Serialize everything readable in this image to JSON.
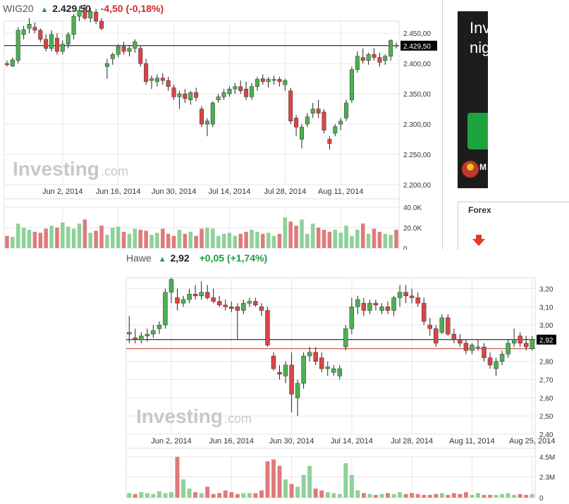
{
  "colors": {
    "up": "#4cb050",
    "down": "#d94545",
    "vol_up": "#8dd19a",
    "vol_down": "#e07a7a",
    "grid": "#e6e6e6",
    "price_line": "#000000",
    "ref_line": "#c0392b"
  },
  "ad": {
    "text": "Inv\nnig",
    "logo_text": "M"
  },
  "sidebar": {
    "tab_label": "Forex"
  },
  "chart_data": [
    {
      "type": "candlestick",
      "header": {
        "name": "WIG20",
        "price": "2.429,50",
        "change": "-4,50 (-0,18%)"
      },
      "watermark": "Investing.com",
      "last_price_label": "2.429,50",
      "last_price": 2429.5,
      "x_ticks": [
        {
          "label": "Jun 2, 2014",
          "i": 10
        },
        {
          "label": "Jun 16, 2014",
          "i": 20
        },
        {
          "label": "Jun 30, 2014",
          "i": 30
        },
        {
          "label": "Jul 14, 2014",
          "i": 40
        },
        {
          "label": "Jul 28, 2014",
          "i": 50
        },
        {
          "label": "Aug 11, 2014",
          "i": 60
        }
      ],
      "y_ticks": [
        {
          "label": "2.450,00",
          "v": 2450
        },
        {
          "label": "2.400,00",
          "v": 2400
        },
        {
          "label": "2.350,00",
          "v": 2350
        },
        {
          "label": "2.300,00",
          "v": 2300
        },
        {
          "label": "2.250,00",
          "v": 2250
        },
        {
          "label": "2.200,00",
          "v": 2200
        }
      ],
      "ylim": [
        2200,
        2470
      ],
      "vol_ticks": [
        {
          "label": "40.0K",
          "v": 40
        },
        {
          "label": "20.0K",
          "v": 20
        },
        {
          "label": "0",
          "v": 0
        }
      ],
      "vol_max": 40,
      "candles": [
        [
          2400,
          2405,
          2395,
          2398
        ],
        [
          2396,
          2410,
          2394,
          2406
        ],
        [
          2405,
          2460,
          2400,
          2455
        ],
        [
          2448,
          2462,
          2440,
          2456
        ],
        [
          2458,
          2475,
          2450,
          2465
        ],
        [
          2460,
          2468,
          2450,
          2455
        ],
        [
          2455,
          2458,
          2435,
          2440
        ],
        [
          2440,
          2448,
          2420,
          2425
        ],
        [
          2425,
          2455,
          2420,
          2448
        ],
        [
          2442,
          2450,
          2415,
          2420
        ],
        [
          2420,
          2438,
          2415,
          2432
        ],
        [
          2432,
          2452,
          2425,
          2448
        ],
        [
          2448,
          2482,
          2440,
          2478
        ],
        [
          2478,
          2495,
          2470,
          2488
        ],
        [
          2490,
          2498,
          2472,
          2475
        ],
        [
          2475,
          2492,
          2468,
          2486
        ],
        [
          2485,
          2490,
          2465,
          2470
        ],
        [
          2470,
          2475,
          2455,
          2458
        ],
        [
          2395,
          2408,
          2375,
          2400
        ],
        [
          2408,
          2418,
          2398,
          2415
        ],
        [
          2415,
          2432,
          2410,
          2428
        ],
        [
          2428,
          2436,
          2415,
          2420
        ],
        [
          2420,
          2430,
          2412,
          2425
        ],
        [
          2425,
          2440,
          2418,
          2436
        ],
        [
          2425,
          2430,
          2395,
          2400
        ],
        [
          2400,
          2408,
          2365,
          2370
        ],
        [
          2372,
          2380,
          2358,
          2375
        ],
        [
          2370,
          2382,
          2362,
          2376
        ],
        [
          2376,
          2384,
          2365,
          2372
        ],
        [
          2372,
          2378,
          2355,
          2362
        ],
        [
          2360,
          2365,
          2340,
          2345
        ],
        [
          2345,
          2355,
          2325,
          2350
        ],
        [
          2350,
          2358,
          2335,
          2342
        ],
        [
          2340,
          2355,
          2332,
          2352
        ],
        [
          2352,
          2360,
          2338,
          2344
        ],
        [
          2325,
          2330,
          2295,
          2300
        ],
        [
          2300,
          2310,
          2280,
          2305
        ],
        [
          2300,
          2338,
          2295,
          2335
        ],
        [
          2340,
          2350,
          2335,
          2345
        ],
        [
          2345,
          2358,
          2340,
          2352
        ],
        [
          2350,
          2362,
          2345,
          2358
        ],
        [
          2358,
          2368,
          2350,
          2362
        ],
        [
          2362,
          2372,
          2350,
          2355
        ],
        [
          2358,
          2370,
          2340,
          2345
        ],
        [
          2345,
          2368,
          2340,
          2362
        ],
        [
          2362,
          2378,
          2355,
          2374
        ],
        [
          2375,
          2382,
          2365,
          2370
        ],
        [
          2370,
          2378,
          2360,
          2374
        ],
        [
          2372,
          2380,
          2365,
          2374
        ],
        [
          2374,
          2378,
          2362,
          2370
        ],
        [
          2365,
          2375,
          2355,
          2372
        ],
        [
          2355,
          2360,
          2300,
          2305
        ],
        [
          2310,
          2315,
          2280,
          2295
        ],
        [
          2275,
          2300,
          2260,
          2295
        ],
        [
          2300,
          2318,
          2295,
          2312
        ],
        [
          2318,
          2335,
          2310,
          2325
        ],
        [
          2325,
          2340,
          2310,
          2318
        ],
        [
          2320,
          2325,
          2285,
          2290
        ],
        [
          2275,
          2280,
          2258,
          2268
        ],
        [
          2285,
          2300,
          2280,
          2296
        ],
        [
          2300,
          2310,
          2290,
          2305
        ],
        [
          2310,
          2340,
          2305,
          2335
        ],
        [
          2340,
          2395,
          2335,
          2390
        ],
        [
          2390,
          2420,
          2385,
          2412
        ],
        [
          2410,
          2425,
          2400,
          2405
        ],
        [
          2405,
          2418,
          2398,
          2415
        ],
        [
          2415,
          2425,
          2405,
          2410
        ],
        [
          2410,
          2418,
          2395,
          2402
        ],
        [
          2405,
          2415,
          2398,
          2412
        ],
        [
          2412,
          2440,
          2405,
          2438
        ],
        [
          2430,
          2435,
          2425,
          2429.5
        ]
      ],
      "volumes": [
        12,
        11,
        24,
        20,
        18,
        16,
        15,
        19,
        22,
        20,
        25,
        21,
        19,
        24,
        28,
        15,
        17,
        22,
        13,
        20,
        21,
        16,
        14,
        19,
        18,
        17,
        13,
        15,
        19,
        14,
        12,
        18,
        14,
        16,
        12,
        19,
        20,
        19,
        12,
        14,
        15,
        12,
        14,
        16,
        18,
        16,
        14,
        15,
        12,
        14,
        30,
        26,
        22,
        28,
        14,
        24,
        20,
        18,
        16,
        18,
        15,
        22,
        12,
        18,
        24,
        14,
        19,
        16,
        14,
        13,
        18
      ]
    },
    {
      "type": "candlestick",
      "header": {
        "name": "Hawe",
        "price": "2,92",
        "change": "+0,05 (+1,74%)"
      },
      "watermark": "Investing.com",
      "last_price_label": "2,92",
      "last_price": 2.92,
      "ref_price": 2.87,
      "x_ticks": [
        {
          "label": "Jun 2, 2014",
          "i": 7
        },
        {
          "label": "Jun 16, 2014",
          "i": 17
        },
        {
          "label": "Jun 30, 2014",
          "i": 27
        },
        {
          "label": "Jul 14, 2014",
          "i": 37
        },
        {
          "label": "Jul 28, 2014",
          "i": 47
        },
        {
          "label": "Aug 11, 2014",
          "i": 57
        },
        {
          "label": "Aug 25, 2014",
          "i": 67
        }
      ],
      "y_ticks": [
        {
          "label": "3,20",
          "v": 3.2
        },
        {
          "label": "3,10",
          "v": 3.1
        },
        {
          "label": "3,00",
          "v": 3.0
        },
        {
          "label": "2,80",
          "v": 2.8
        },
        {
          "label": "2,70",
          "v": 2.7
        },
        {
          "label": "2,60",
          "v": 2.6
        },
        {
          "label": "2,50",
          "v": 2.5
        },
        {
          "label": "2,40",
          "v": 2.4
        }
      ],
      "ylim": [
        2.4,
        3.26
      ],
      "vol_ticks": [
        {
          "label": "4.5M",
          "v": 4.5
        },
        {
          "label": "2.3M",
          "v": 2.3
        },
        {
          "label": "0",
          "v": 0
        }
      ],
      "vol_max": 4.5,
      "candles": [
        [
          2.95,
          3.05,
          2.9,
          2.96
        ],
        [
          2.93,
          2.98,
          2.9,
          2.92
        ],
        [
          2.92,
          2.96,
          2.9,
          2.94
        ],
        [
          2.94,
          2.98,
          2.91,
          2.95
        ],
        [
          2.95,
          3.0,
          2.93,
          2.97
        ],
        [
          2.98,
          3.02,
          2.95,
          3.0
        ],
        [
          3.0,
          3.2,
          2.98,
          3.18
        ],
        [
          3.18,
          3.26,
          3.12,
          3.25
        ],
        [
          3.15,
          3.2,
          3.08,
          3.12
        ],
        [
          3.12,
          3.16,
          3.1,
          3.14
        ],
        [
          3.14,
          3.2,
          3.12,
          3.17
        ],
        [
          3.17,
          3.22,
          3.14,
          3.16
        ],
        [
          3.16,
          3.24,
          3.14,
          3.18
        ],
        [
          3.18,
          3.22,
          3.14,
          3.15
        ],
        [
          3.15,
          3.2,
          3.12,
          3.13
        ],
        [
          3.13,
          3.16,
          3.1,
          3.11
        ],
        [
          3.11,
          3.14,
          3.08,
          3.1
        ],
        [
          3.1,
          3.13,
          3.07,
          3.09
        ],
        [
          3.1,
          3.12,
          2.92,
          3.08
        ],
        [
          3.08,
          3.14,
          3.06,
          3.12
        ],
        [
          3.12,
          3.15,
          3.1,
          3.13
        ],
        [
          3.13,
          3.15,
          3.1,
          3.11
        ],
        [
          3.1,
          3.12,
          3.05,
          3.08
        ],
        [
          3.08,
          3.1,
          2.88,
          2.89
        ],
        [
          2.83,
          2.85,
          2.75,
          2.76
        ],
        [
          2.74,
          2.78,
          2.7,
          2.73
        ],
        [
          2.72,
          2.8,
          2.68,
          2.78
        ],
        [
          2.78,
          2.85,
          2.52,
          2.62
        ],
        [
          2.6,
          2.7,
          2.5,
          2.68
        ],
        [
          2.68,
          2.85,
          2.65,
          2.83
        ],
        [
          2.83,
          2.88,
          2.8,
          2.85
        ],
        [
          2.85,
          2.88,
          2.78,
          2.8
        ],
        [
          2.82,
          2.85,
          2.74,
          2.76
        ],
        [
          2.76,
          2.8,
          2.72,
          2.77
        ],
        [
          2.74,
          2.78,
          2.72,
          2.76
        ],
        [
          2.72,
          2.78,
          2.7,
          2.76
        ],
        [
          2.88,
          3.0,
          2.86,
          2.98
        ],
        [
          2.98,
          3.15,
          2.95,
          3.1
        ],
        [
          3.1,
          3.16,
          3.06,
          3.14
        ],
        [
          3.12,
          3.15,
          3.05,
          3.08
        ],
        [
          3.08,
          3.14,
          3.06,
          3.12
        ],
        [
          3.12,
          3.14,
          3.08,
          3.11
        ],
        [
          3.08,
          3.12,
          3.06,
          3.1
        ],
        [
          3.1,
          3.13,
          3.06,
          3.08
        ],
        [
          3.08,
          3.16,
          3.05,
          3.15
        ],
        [
          3.15,
          3.22,
          3.1,
          3.18
        ],
        [
          3.18,
          3.22,
          3.12,
          3.16
        ],
        [
          3.16,
          3.2,
          3.12,
          3.15
        ],
        [
          3.15,
          3.18,
          3.1,
          3.12
        ],
        [
          3.12,
          3.15,
          3.0,
          3.02
        ],
        [
          3.0,
          3.04,
          2.94,
          2.98
        ],
        [
          2.98,
          3.0,
          2.88,
          2.9
        ],
        [
          2.96,
          3.06,
          2.95,
          3.04
        ],
        [
          3.04,
          3.06,
          2.94,
          2.95
        ],
        [
          2.95,
          2.98,
          2.9,
          2.92
        ],
        [
          2.92,
          2.95,
          2.88,
          2.9
        ],
        [
          2.9,
          2.92,
          2.84,
          2.86
        ],
        [
          2.86,
          2.9,
          2.84,
          2.89
        ],
        [
          2.88,
          2.92,
          2.86,
          2.88
        ],
        [
          2.88,
          2.9,
          2.8,
          2.82
        ],
        [
          2.82,
          2.85,
          2.76,
          2.78
        ],
        [
          2.76,
          2.82,
          2.72,
          2.8
        ],
        [
          2.8,
          2.86,
          2.78,
          2.84
        ],
        [
          2.84,
          2.92,
          2.82,
          2.9
        ],
        [
          2.9,
          2.98,
          2.88,
          2.92
        ],
        [
          2.94,
          2.96,
          2.88,
          2.9
        ],
        [
          2.9,
          2.94,
          2.86,
          2.88
        ],
        [
          2.87,
          2.94,
          2.86,
          2.92
        ]
      ],
      "volumes": [
        0.5,
        0.4,
        0.6,
        0.5,
        0.4,
        0.7,
        0.5,
        0.6,
        4.5,
        2.0,
        1.0,
        0.6,
        0.5,
        1.2,
        0.4,
        0.5,
        0.8,
        0.6,
        0.4,
        0.5,
        0.5,
        0.5,
        0.8,
        4.0,
        4.2,
        3.5,
        2.0,
        1.5,
        1.2,
        2.5,
        3.5,
        1.0,
        0.8,
        0.6,
        0.5,
        0.4,
        3.8,
        2.5,
        0.8,
        0.5,
        0.4,
        0.3,
        0.4,
        0.5,
        0.4,
        0.6,
        0.4,
        0.5,
        0.4,
        0.3,
        0.3,
        0.4,
        0.5,
        0.3,
        0.5,
        0.4,
        0.6,
        0.3,
        0.5,
        0.3,
        0.3,
        0.3,
        0.4,
        0.5,
        0.3,
        0.4,
        0.3,
        0.4
      ]
    }
  ]
}
